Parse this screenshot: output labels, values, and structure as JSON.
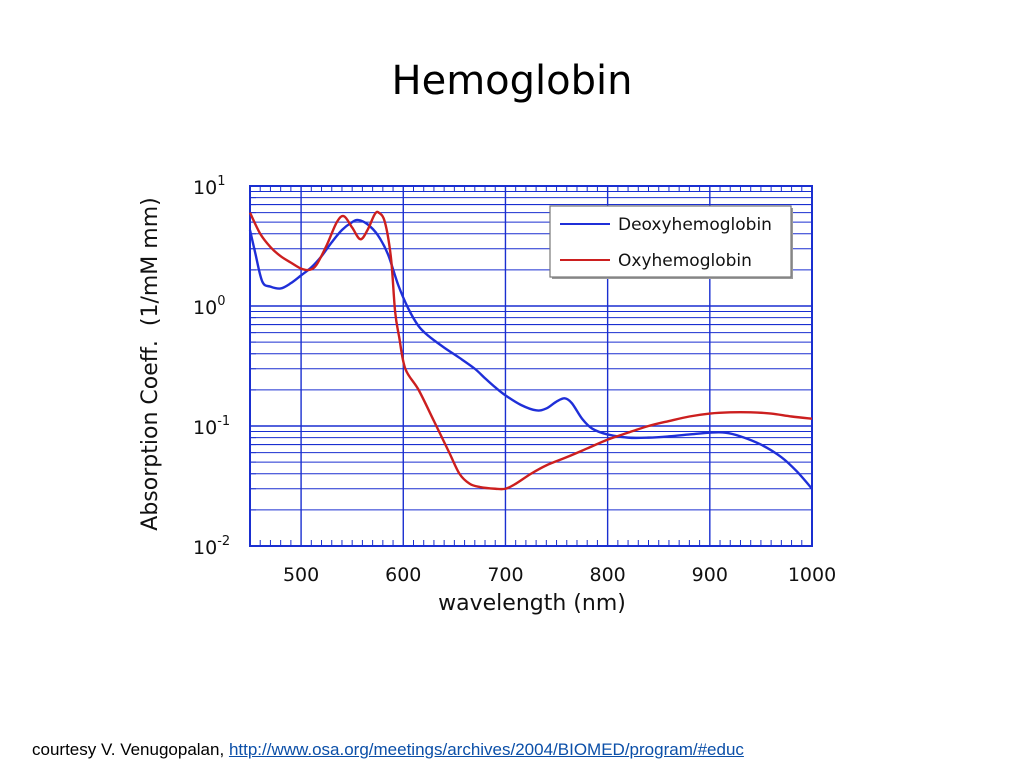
{
  "slide": {
    "title": "Hemoglobin"
  },
  "footer": {
    "prefix": "courtesy V. Venugopalan,",
    "link": "http://www.osa.org/meetings/archives/2004/BIOMED/program/#educ",
    "link_color": "#0b4fa8"
  },
  "chart_data": {
    "type": "line",
    "title": "",
    "xlabel": "wavelength (nm)",
    "ylabel": "Absorption Coeff.  (1/mM mm)",
    "xlim": [
      450,
      1000
    ],
    "ylim": [
      0.01,
      10
    ],
    "yscale": "log",
    "x_ticks": [
      500,
      600,
      700,
      800,
      900,
      1000
    ],
    "y_ticks": [
      {
        "base": "10",
        "exp": "-2",
        "value": 0.01
      },
      {
        "base": "10",
        "exp": "-1",
        "value": 0.1
      },
      {
        "base": "10",
        "exp": "0",
        "value": 1
      },
      {
        "base": "10",
        "exp": "1",
        "value": 10
      }
    ],
    "grid": true,
    "grid_color": "#1a2fd0",
    "legend_position": "top-right",
    "series": [
      {
        "name": "Deoxyhemoglobin",
        "color": "#1f2fd8",
        "points": [
          [
            450,
            4.3
          ],
          [
            455,
            2.8
          ],
          [
            462,
            1.6
          ],
          [
            470,
            1.45
          ],
          [
            480,
            1.4
          ],
          [
            490,
            1.55
          ],
          [
            500,
            1.8
          ],
          [
            510,
            2.1
          ],
          [
            520,
            2.6
          ],
          [
            530,
            3.4
          ],
          [
            540,
            4.3
          ],
          [
            550,
            5.0
          ],
          [
            556,
            5.2
          ],
          [
            565,
            4.8
          ],
          [
            575,
            3.9
          ],
          [
            585,
            2.7
          ],
          [
            595,
            1.5
          ],
          [
            605,
            0.95
          ],
          [
            615,
            0.68
          ],
          [
            625,
            0.56
          ],
          [
            640,
            0.45
          ],
          [
            655,
            0.37
          ],
          [
            670,
            0.3
          ],
          [
            680,
            0.25
          ],
          [
            690,
            0.21
          ],
          [
            700,
            0.18
          ],
          [
            715,
            0.15
          ],
          [
            730,
            0.135
          ],
          [
            740,
            0.14
          ],
          [
            750,
            0.16
          ],
          [
            758,
            0.17
          ],
          [
            765,
            0.155
          ],
          [
            775,
            0.115
          ],
          [
            785,
            0.095
          ],
          [
            800,
            0.085
          ],
          [
            820,
            0.08
          ],
          [
            840,
            0.08
          ],
          [
            860,
            0.082
          ],
          [
            880,
            0.085
          ],
          [
            900,
            0.088
          ],
          [
            915,
            0.088
          ],
          [
            930,
            0.082
          ],
          [
            950,
            0.07
          ],
          [
            970,
            0.055
          ],
          [
            985,
            0.042
          ],
          [
            1000,
            0.03
          ]
        ]
      },
      {
        "name": "Oxyhemoglobin",
        "color": "#cc1f1f",
        "points": [
          [
            450,
            6.0
          ],
          [
            460,
            4.0
          ],
          [
            470,
            3.1
          ],
          [
            480,
            2.6
          ],
          [
            490,
            2.3
          ],
          [
            500,
            2.05
          ],
          [
            508,
            2.0
          ],
          [
            515,
            2.2
          ],
          [
            525,
            3.2
          ],
          [
            535,
            5.0
          ],
          [
            542,
            5.6
          ],
          [
            550,
            4.5
          ],
          [
            558,
            3.6
          ],
          [
            565,
            4.3
          ],
          [
            572,
            5.8
          ],
          [
            576,
            6.0
          ],
          [
            582,
            5.0
          ],
          [
            588,
            2.5
          ],
          [
            592,
            0.9
          ],
          [
            596,
            0.55
          ],
          [
            602,
            0.3
          ],
          [
            615,
            0.2
          ],
          [
            630,
            0.11
          ],
          [
            645,
            0.06
          ],
          [
            655,
            0.04
          ],
          [
            665,
            0.033
          ],
          [
            675,
            0.031
          ],
          [
            690,
            0.03
          ],
          [
            700,
            0.03
          ],
          [
            710,
            0.033
          ],
          [
            725,
            0.04
          ],
          [
            740,
            0.047
          ],
          [
            760,
            0.055
          ],
          [
            780,
            0.065
          ],
          [
            800,
            0.077
          ],
          [
            820,
            0.088
          ],
          [
            840,
            0.1
          ],
          [
            860,
            0.11
          ],
          [
            880,
            0.12
          ],
          [
            900,
            0.127
          ],
          [
            920,
            0.13
          ],
          [
            940,
            0.13
          ],
          [
            960,
            0.127
          ],
          [
            980,
            0.12
          ],
          [
            1000,
            0.115
          ]
        ]
      }
    ]
  }
}
